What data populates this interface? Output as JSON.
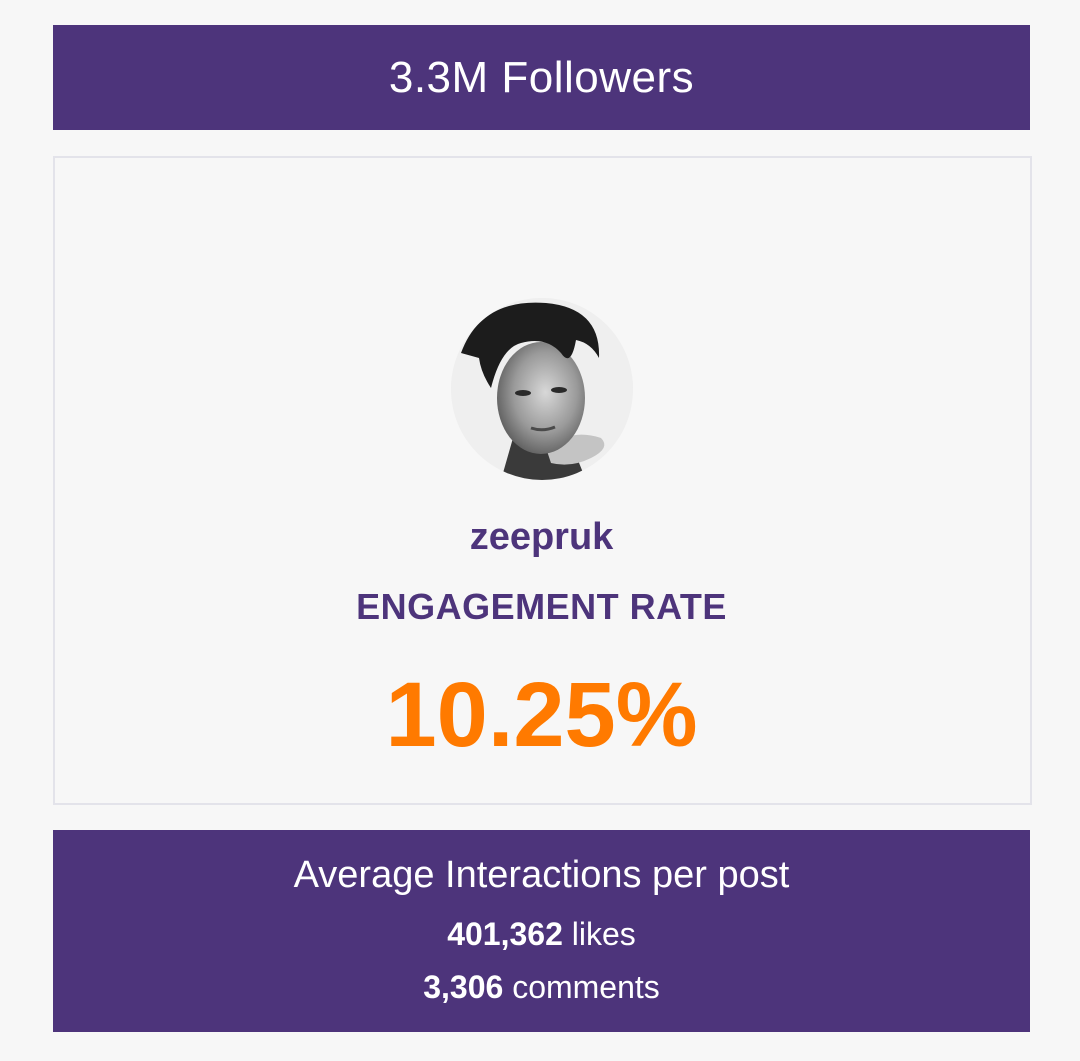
{
  "header": {
    "followers_text": "3.3M Followers"
  },
  "profile": {
    "username": "zeepruk",
    "avatar": "profile-photo"
  },
  "engagement": {
    "label": "ENGAGEMENT RATE",
    "value": "10.25%"
  },
  "interactions": {
    "title": "Average Interactions per post",
    "likes_count": "401,362",
    "likes_label": "likes",
    "comments_count": "3,306",
    "comments_label": "comments"
  },
  "colors": {
    "brand_purple": "#4d347b",
    "accent_orange": "#ff7a00",
    "background": "#f7f7f7"
  }
}
